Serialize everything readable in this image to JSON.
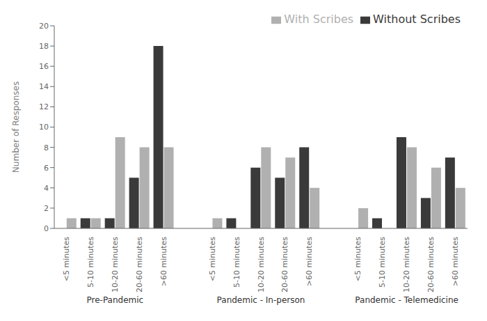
{
  "chart_data": {
    "type": "bar",
    "ylabel": "Number of Responses",
    "groups": [
      "Pre-Pandemic",
      "Pandemic - In-person",
      "Pandemic - Telemedicine"
    ],
    "categories": [
      "<5 minutes",
      "5-10 minutes",
      "10-20 minutes",
      "20-60 minutes",
      ">60 minutes",
      "<5 minutes",
      "5-10 minutes",
      "10-20 minutes",
      "20-60 minutes",
      ">60 minutes",
      "<5 minutes",
      "5-10 minutes",
      "10-20 minutes",
      "20-60 minutes",
      ">60 minutes"
    ],
    "series": [
      {
        "name": "Without Scribes",
        "color": "#3a3a3a",
        "values": [
          0,
          1,
          1,
          5,
          18,
          0,
          1,
          6,
          5,
          8,
          0,
          1,
          9,
          3,
          7
        ]
      },
      {
        "name": "With Scribes",
        "color": "#b0b0b0",
        "values": [
          1,
          1,
          9,
          8,
          8,
          1,
          0,
          8,
          7,
          4,
          2,
          0,
          8,
          6,
          4
        ]
      }
    ],
    "ylim": [
      0,
      20
    ],
    "yticks": [
      0,
      2,
      4,
      6,
      8,
      10,
      12,
      14,
      16,
      18,
      20
    ],
    "legend": "upper right",
    "grid": false
  }
}
